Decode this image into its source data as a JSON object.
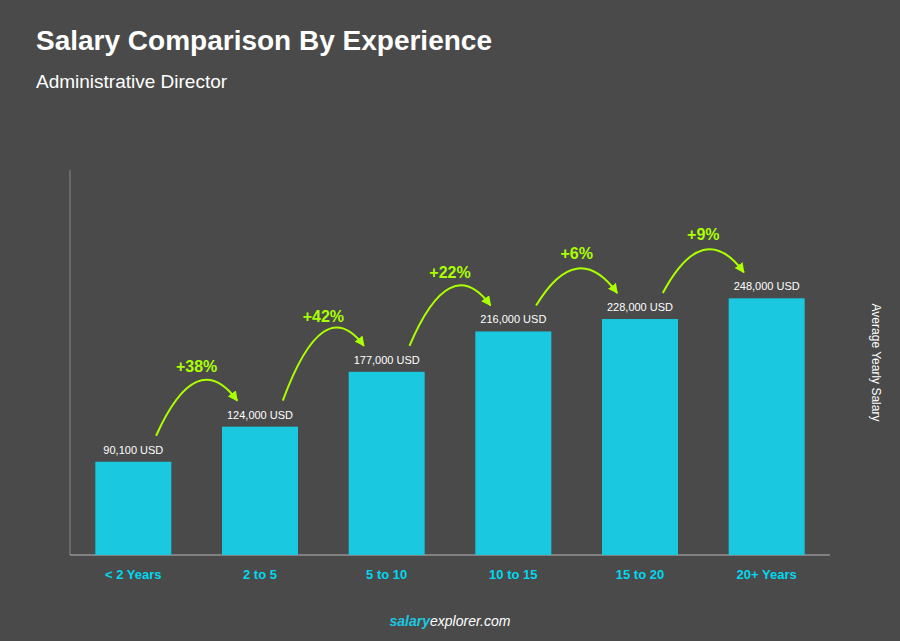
{
  "chart_data": {
    "type": "bar",
    "title": "Salary Comparison By Experience",
    "subtitle": "Administrative Director",
    "ylabel": "Average Yearly Salary",
    "categories": [
      "< 2 Years",
      "2 to 5",
      "5 to 10",
      "10 to 15",
      "15 to 20",
      "20+ Years"
    ],
    "values": [
      90100,
      124000,
      177000,
      216000,
      228000,
      248000
    ],
    "value_labels": [
      "90,100 USD",
      "124,000 USD",
      "177,000 USD",
      "216,000 USD",
      "228,000 USD",
      "248,000 USD"
    ],
    "data_labels": true,
    "annotations": [
      "+38%",
      "+42%",
      "+22%",
      "+6%",
      "+9%"
    ],
    "watermark": [
      "salary",
      "explorer.com"
    ],
    "color": "#1ac8e0",
    "ylim": [
      0,
      372000
    ],
    "grid": false,
    "tick_labels": "x"
  }
}
